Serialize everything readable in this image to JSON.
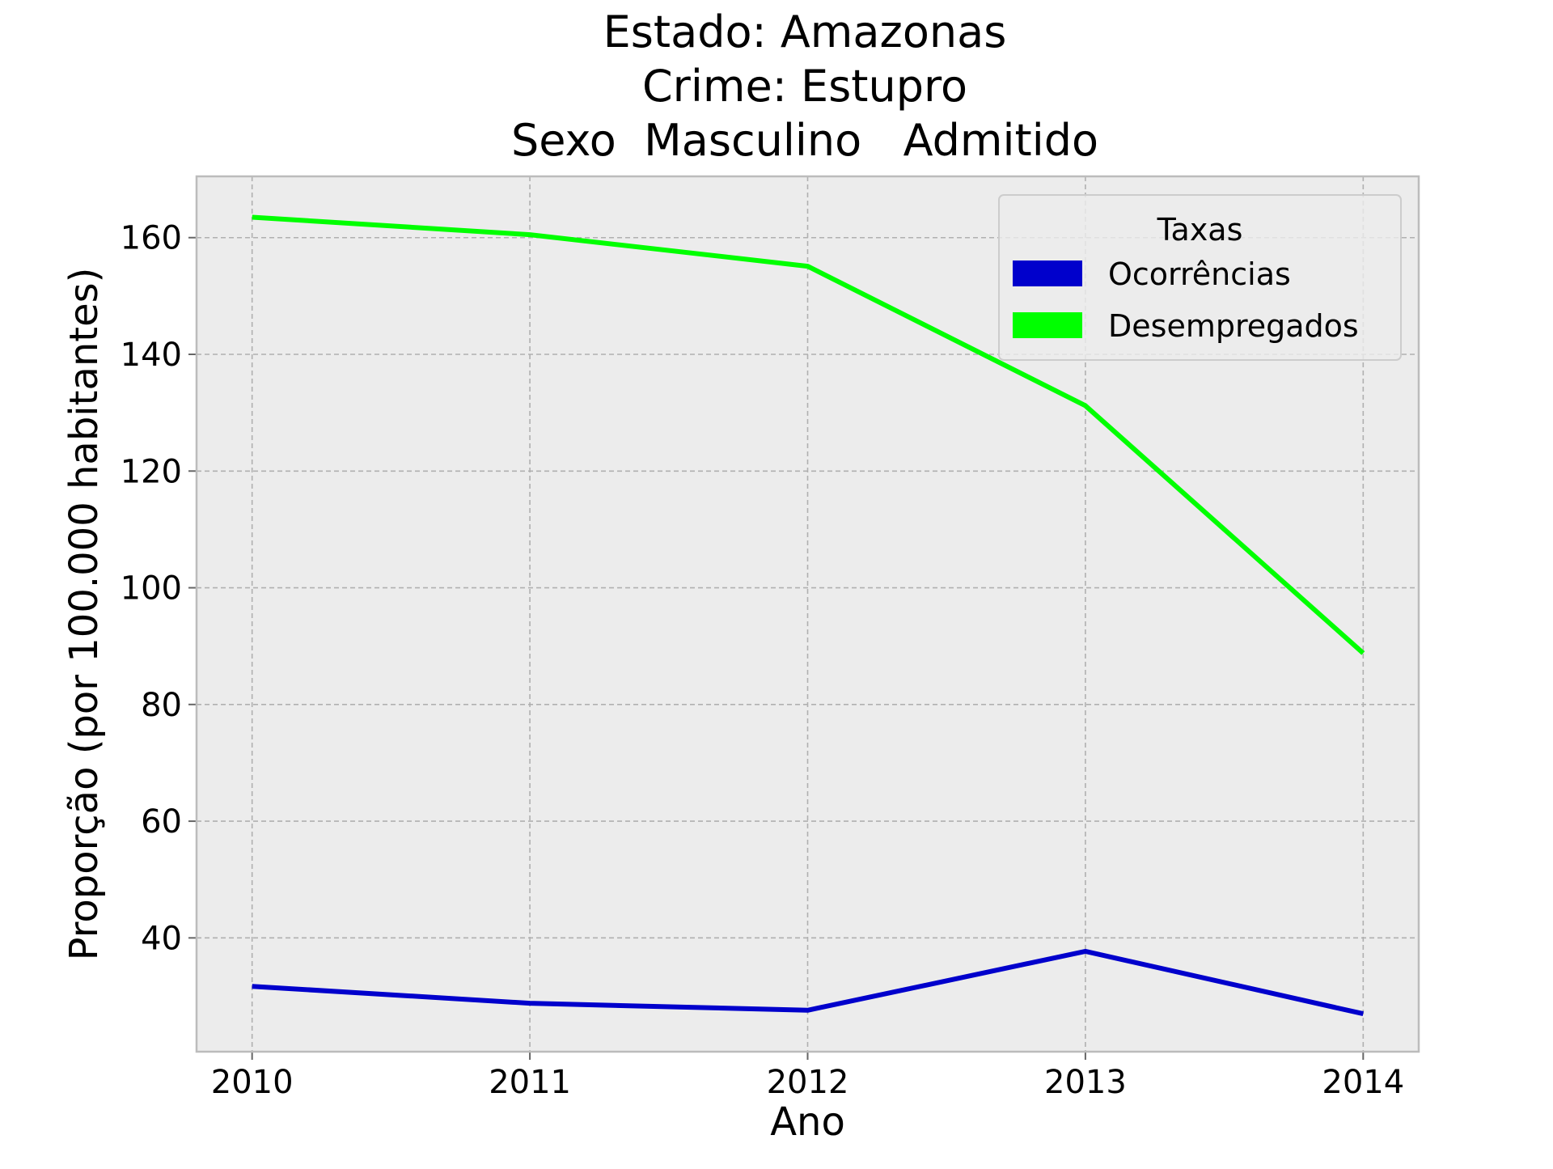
{
  "chart_data": {
    "type": "line",
    "title_lines": [
      "Estado: Amazonas",
      "Crime: Estupro",
      "Sexo  Masculino   Admitido"
    ],
    "xlabel": "Ano",
    "ylabel": "Proporção (por 100.000 habitantes)",
    "x": [
      2010,
      2011,
      2012,
      2013,
      2014
    ],
    "x_ticks": [
      "2010",
      "2011",
      "2012",
      "2013",
      "2014"
    ],
    "xlim": [
      2009.8,
      2014.2
    ],
    "ylim": [
      20.5,
      170.5
    ],
    "y_ticks": [
      40,
      60,
      80,
      100,
      120,
      140,
      160
    ],
    "y_tick_labels": [
      "40",
      "60",
      "80",
      "100",
      "120",
      "140",
      "160"
    ],
    "grid": true,
    "legend": {
      "title": "Taxas",
      "position": "top-right"
    },
    "series": [
      {
        "name": "Ocorrências",
        "color": "#0000cc",
        "values": [
          31.7,
          28.8,
          27.6,
          37.7,
          27.0
        ]
      },
      {
        "name": "Desempregados",
        "color": "#00ff00",
        "values": [
          163.5,
          160.5,
          155.1,
          131.2,
          88.8
        ]
      }
    ],
    "plot_background": "#ececec",
    "frame_color": "#bcbcbc"
  }
}
